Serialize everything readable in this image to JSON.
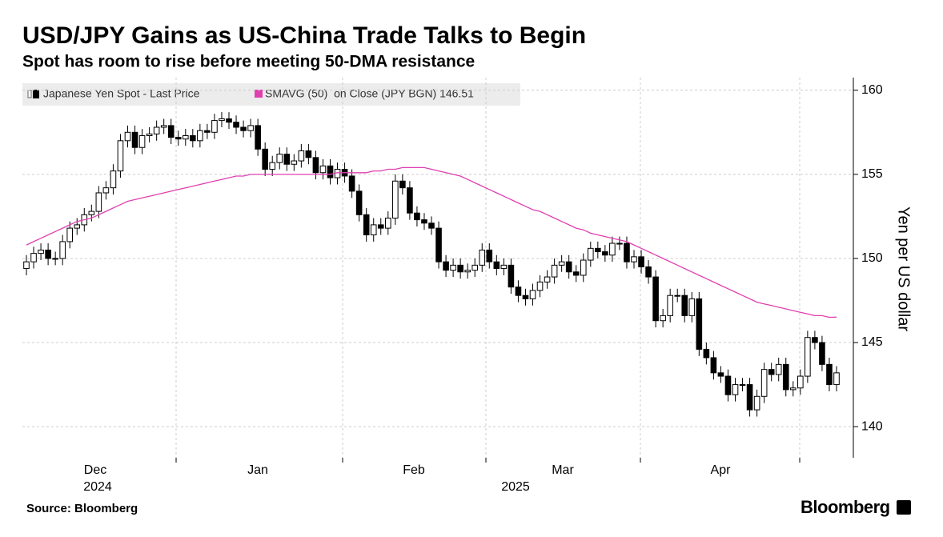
{
  "chart_data": {
    "type": "candlestick",
    "title": "USD/JPY Gains as US-China Trade Talks to Begin",
    "subtitle": "Spot has room to rise before meeting 50-DMA resistance",
    "y_label": "Yen per US dollar",
    "source": "Source: Bloomberg",
    "brand": "Bloomberg",
    "month_labels": [
      "Dec",
      "Jan",
      "Feb",
      "Mar",
      "Apr"
    ],
    "year_labels": [
      "2024",
      "2025"
    ],
    "ylim": [
      138.15,
      160.75
    ],
    "yticks": [
      140,
      145,
      150,
      155,
      160
    ],
    "grid": true,
    "series": [
      {
        "name": "Japanese Yen Spot - Last Price",
        "up_color": "#ffffff",
        "down_color": "#000000",
        "color": "#000000",
        "open": [
          149.4,
          149.8,
          150.3,
          150.5,
          150.0,
          150.0,
          151.0,
          151.8,
          152.0,
          152.6,
          152.8,
          153.9,
          154.2,
          155.2,
          157.0,
          157.5,
          156.6,
          157.3,
          157.4,
          157.8,
          157.9,
          157.2,
          157.1,
          157.3,
          157.0,
          157.6,
          157.5,
          158.2,
          158.3,
          158.1,
          157.8,
          157.6,
          157.9,
          156.5,
          155.3,
          155.7,
          156.2,
          155.6,
          155.8,
          156.4,
          156.0,
          155.1,
          155.5,
          154.8,
          155.3,
          154.9,
          154.0,
          152.6,
          151.4,
          152.0,
          151.8,
          152.4,
          154.6,
          154.2,
          152.7,
          152.3,
          152.1,
          151.8,
          149.8,
          149.3,
          149.6,
          149.2,
          149.3,
          149.6,
          150.5,
          149.8,
          149.4,
          149.6,
          148.3,
          147.8,
          147.6,
          148.1,
          148.6,
          148.9,
          149.6,
          149.8,
          149.2,
          149.0,
          149.9,
          150.6,
          150.4,
          150.2,
          150.9,
          150.9,
          149.8,
          150.1,
          149.5,
          148.9,
          146.3,
          146.6,
          147.8,
          147.8,
          146.6,
          147.6,
          144.6,
          144.1,
          143.2,
          143.0,
          141.9,
          142.5,
          142.5,
          141.0,
          141.8,
          143.4,
          143.1,
          143.7,
          142.2,
          142.3,
          143.0,
          145.3,
          145.0,
          143.7,
          142.5
        ],
        "high": [
          150.2,
          150.7,
          150.9,
          150.9,
          150.4,
          151.4,
          152.2,
          152.4,
          153.0,
          153.2,
          154.3,
          154.6,
          155.6,
          157.4,
          157.9,
          157.9,
          157.7,
          157.8,
          158.2,
          158.3,
          158.3,
          157.6,
          157.7,
          157.7,
          158.0,
          158.0,
          158.6,
          158.7,
          158.7,
          158.5,
          158.2,
          158.3,
          158.3,
          156.9,
          156.1,
          156.6,
          156.6,
          156.2,
          156.8,
          156.8,
          156.4,
          155.9,
          155.9,
          155.7,
          155.7,
          155.3,
          154.4,
          153.0,
          152.4,
          152.4,
          152.8,
          155.0,
          155.0,
          154.6,
          153.1,
          152.7,
          152.5,
          152.2,
          150.2,
          150.0,
          150.0,
          149.7,
          150.0,
          150.9,
          150.9,
          150.2,
          150.0,
          150.0,
          148.7,
          148.2,
          148.5,
          149.0,
          149.3,
          150.0,
          150.2,
          150.2,
          149.6,
          150.3,
          151.0,
          151.0,
          150.8,
          151.3,
          151.3,
          151.3,
          150.5,
          150.5,
          149.9,
          149.3,
          147.0,
          148.2,
          148.2,
          148.2,
          148.0,
          148.0,
          145.0,
          144.5,
          143.6,
          143.4,
          142.9,
          142.9,
          142.9,
          142.2,
          143.8,
          143.8,
          144.1,
          144.1,
          142.7,
          143.4,
          145.7,
          145.7,
          145.4,
          144.1,
          143.6
        ],
        "low": [
          149.0,
          149.4,
          149.9,
          149.6,
          149.6,
          149.6,
          150.6,
          151.4,
          151.6,
          152.2,
          152.4,
          153.5,
          153.8,
          154.8,
          156.6,
          156.2,
          156.2,
          156.9,
          157.0,
          157.4,
          156.8,
          156.7,
          156.7,
          156.6,
          156.6,
          157.1,
          157.1,
          157.8,
          157.7,
          157.4,
          157.2,
          157.2,
          156.1,
          154.9,
          154.9,
          155.3,
          155.2,
          155.2,
          155.4,
          155.6,
          154.7,
          154.7,
          154.4,
          154.4,
          154.5,
          153.6,
          152.2,
          151.0,
          151.0,
          151.4,
          151.4,
          152.0,
          153.8,
          152.3,
          151.9,
          151.7,
          151.4,
          149.4,
          148.9,
          148.9,
          148.8,
          148.8,
          148.9,
          149.2,
          149.4,
          149.0,
          149.0,
          147.9,
          147.4,
          147.2,
          147.2,
          147.7,
          148.2,
          148.5,
          149.2,
          148.8,
          148.6,
          148.6,
          149.5,
          150.0,
          149.8,
          149.8,
          150.5,
          149.4,
          149.4,
          149.1,
          148.5,
          145.9,
          145.9,
          146.2,
          147.4,
          146.2,
          146.2,
          144.2,
          143.7,
          142.8,
          142.6,
          141.5,
          141.5,
          142.1,
          140.6,
          140.6,
          141.4,
          142.7,
          142.7,
          141.8,
          141.8,
          141.9,
          142.6,
          144.6,
          143.3,
          142.1,
          142.1
        ],
        "close": [
          149.8,
          150.3,
          150.5,
          150.0,
          150.0,
          151.0,
          151.8,
          152.0,
          152.6,
          152.8,
          153.9,
          154.2,
          155.2,
          157.0,
          157.5,
          156.6,
          157.3,
          157.4,
          157.8,
          157.9,
          157.2,
          157.1,
          157.3,
          157.0,
          157.6,
          157.5,
          158.2,
          158.3,
          158.1,
          157.8,
          157.6,
          157.9,
          156.5,
          155.3,
          155.7,
          156.2,
          155.6,
          155.8,
          156.4,
          156.0,
          155.1,
          155.5,
          154.8,
          155.3,
          154.9,
          154.0,
          152.6,
          151.4,
          152.0,
          151.8,
          152.4,
          154.6,
          154.2,
          152.7,
          152.3,
          152.1,
          151.8,
          149.8,
          149.3,
          149.6,
          149.2,
          149.3,
          149.6,
          150.5,
          149.8,
          149.4,
          149.6,
          148.3,
          147.8,
          147.6,
          148.1,
          148.6,
          148.9,
          149.6,
          149.8,
          149.2,
          149.0,
          149.9,
          150.6,
          150.4,
          150.2,
          150.9,
          150.9,
          149.8,
          150.1,
          149.5,
          148.9,
          146.3,
          146.6,
          147.8,
          147.8,
          146.6,
          147.6,
          144.6,
          144.1,
          143.2,
          143.0,
          141.9,
          142.5,
          142.5,
          141.0,
          141.8,
          143.4,
          143.1,
          143.7,
          142.2,
          142.3,
          143.0,
          145.3,
          145.0,
          143.7,
          142.5,
          143.2
        ]
      },
      {
        "name": "SMAVG (50)  on Close (JPY BGN) 146.51",
        "color": "#e040b0",
        "values": [
          150.8,
          151.0,
          151.2,
          151.4,
          151.6,
          151.8,
          152.0,
          152.2,
          152.3,
          152.4,
          152.6,
          152.8,
          153.0,
          153.2,
          153.4,
          153.5,
          153.6,
          153.7,
          153.8,
          153.9,
          154.0,
          154.1,
          154.2,
          154.3,
          154.4,
          154.5,
          154.6,
          154.7,
          154.8,
          154.9,
          154.9,
          155.0,
          155.0,
          155.0,
          155.0,
          155.0,
          155.0,
          155.0,
          155.0,
          155.0,
          155.0,
          155.0,
          155.0,
          155.1,
          155.1,
          155.1,
          155.1,
          155.1,
          155.2,
          155.2,
          155.3,
          155.3,
          155.4,
          155.4,
          155.4,
          155.4,
          155.3,
          155.2,
          155.1,
          155.0,
          154.9,
          154.7,
          154.5,
          154.3,
          154.1,
          153.9,
          153.7,
          153.5,
          153.3,
          153.1,
          152.9,
          152.8,
          152.6,
          152.4,
          152.2,
          152.0,
          151.8,
          151.7,
          151.5,
          151.4,
          151.3,
          151.2,
          151.1,
          151.0,
          150.8,
          150.6,
          150.4,
          150.2,
          150.0,
          149.8,
          149.6,
          149.4,
          149.2,
          149.0,
          148.8,
          148.6,
          148.4,
          148.2,
          148.0,
          147.8,
          147.6,
          147.4,
          147.3,
          147.2,
          147.1,
          147.0,
          146.9,
          146.8,
          146.7,
          146.6,
          146.6,
          146.5,
          146.51
        ]
      }
    ]
  }
}
